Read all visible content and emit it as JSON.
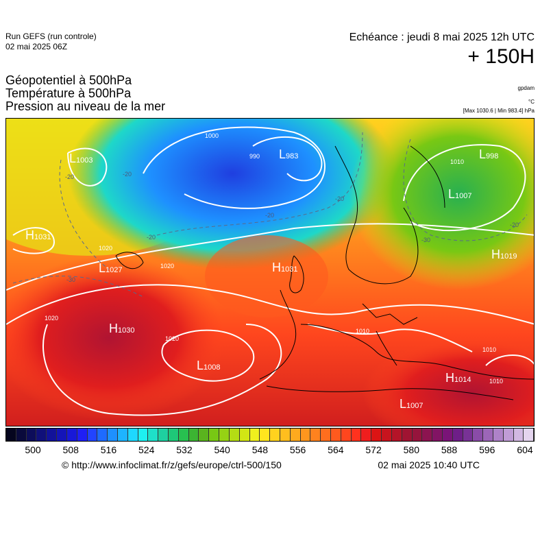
{
  "header": {
    "run_line1": "Run GEFS (run controle)",
    "run_line2": "02 mai 2025 06Z",
    "echeance": "Echéance : jeudi 8 mai 2025 12h UTC",
    "hour": "+ 150H"
  },
  "params": {
    "line1": "Géopotentiel à 500hPa",
    "line2": "Température à 500hPa",
    "line3": "Pression au niveau de la mer"
  },
  "units": {
    "gpdam": "gpdam",
    "celsius": "°C",
    "hpa": "[Max 1030.6 | Min 983.4] hPa"
  },
  "map": {
    "pressure_centers": [
      {
        "type": "L",
        "value": "1003"
      },
      {
        "type": "L",
        "value": "983"
      },
      {
        "type": "L",
        "value": "998"
      },
      {
        "type": "L",
        "value": "1007"
      },
      {
        "type": "H",
        "value": "1031"
      },
      {
        "type": "L",
        "value": "1027"
      },
      {
        "type": "H",
        "value": "1031"
      },
      {
        "type": "H",
        "value": "1019"
      },
      {
        "type": "H",
        "value": "1030"
      },
      {
        "type": "L",
        "value": "1008"
      },
      {
        "type": "H",
        "value": "1014"
      },
      {
        "type": "L",
        "value": "1007"
      }
    ],
    "isobar_labels": [
      "1000",
      "990",
      "1010",
      "1020",
      "1020",
      "1020",
      "1020",
      "1010",
      "1010",
      "1010"
    ],
    "temperature_labels": [
      "-20",
      "-20",
      "-20",
      "-20",
      "-20",
      "-30",
      "-30",
      "-20"
    ]
  },
  "colorbar": {
    "colors": [
      "#05051e",
      "#0a0a3c",
      "#0d0d5a",
      "#10107a",
      "#12129a",
      "#1414b8",
      "#1818d8",
      "#1f1ff5",
      "#2244ff",
      "#1e6bff",
      "#1e90ff",
      "#1eb4ff",
      "#1ed8ff",
      "#1ef0f0",
      "#1ee0c8",
      "#1ed0a0",
      "#1ec878",
      "#28c050",
      "#3cb432",
      "#5ab41e",
      "#78c814",
      "#96d214",
      "#b4dc14",
      "#d2e614",
      "#f0f01e",
      "#ffe61e",
      "#ffd21e",
      "#ffbe1e",
      "#ffaa1e",
      "#ff961e",
      "#ff821e",
      "#ff6e1e",
      "#ff5a1e",
      "#ff461e",
      "#ff321e",
      "#f01e1e",
      "#dc1414",
      "#c8141e",
      "#b41428",
      "#a01432",
      "#96143c",
      "#8c1450",
      "#821464",
      "#7a1478",
      "#6e1e88",
      "#783296",
      "#8a4ca8",
      "#9c66b8",
      "#ae82c8",
      "#c09cd6",
      "#d2b8e2",
      "#e4d4ee"
    ],
    "ticks": [
      "500",
      "508",
      "516",
      "524",
      "532",
      "540",
      "548",
      "556",
      "564",
      "572",
      "580",
      "588",
      "596",
      "604"
    ]
  },
  "footer": {
    "credit": "© http://www.infoclimat.fr/z/gefs/europe/ctrl-500/150",
    "timestamp": "02 mai 2025 10:40 UTC"
  }
}
